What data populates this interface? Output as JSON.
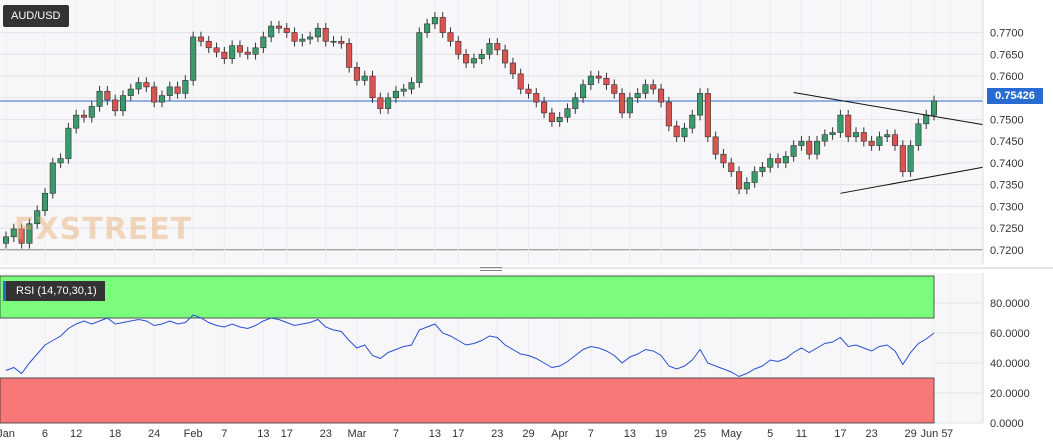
{
  "symbol": "AUD/USD",
  "current_price_label": "0.75426",
  "watermark": "FXSTREET",
  "rsi_label": "RSI (14,70,30,1)",
  "colors": {
    "up": "#3a9a6c",
    "down": "#d9534f",
    "rsi_line": "#2a4fd1",
    "overbought": "#7cfc7c",
    "oversold": "#f87878",
    "price_line": "#2a6bd1"
  },
  "chart_data": [
    {
      "type": "candlestick",
      "title": "AUD/USD",
      "y_ticks": [
        "0.7700",
        "0.7650",
        "0.7600",
        "0.7550",
        "0.7500",
        "0.7450",
        "0.7400",
        "0.7350",
        "0.7300",
        "0.7250",
        "0.7200"
      ],
      "ylim": [
        0.7165,
        0.7775
      ],
      "x_ticks": [
        "Jan",
        "6",
        "12",
        "18",
        "24",
        "Feb",
        "7",
        "13",
        "17",
        "23",
        "Mar",
        "7",
        "13",
        "17",
        "23",
        "29",
        "Apr",
        "7",
        "13",
        "19",
        "25",
        "May",
        "5",
        "11",
        "17",
        "23",
        "29",
        "Jun 5",
        "7"
      ],
      "current_price": 0.75426,
      "close": [
        0.723,
        0.7248,
        0.7215,
        0.726,
        0.729,
        0.733,
        0.74,
        0.741,
        0.748,
        0.751,
        0.7505,
        0.753,
        0.7565,
        0.7545,
        0.752,
        0.7555,
        0.757,
        0.7585,
        0.7575,
        0.754,
        0.7555,
        0.7575,
        0.756,
        0.759,
        0.769,
        0.768,
        0.7665,
        0.7655,
        0.764,
        0.767,
        0.7655,
        0.765,
        0.7665,
        0.769,
        0.7715,
        0.771,
        0.77,
        0.768,
        0.7685,
        0.769,
        0.771,
        0.768,
        0.768,
        0.7675,
        0.762,
        0.759,
        0.76,
        0.755,
        0.7525,
        0.755,
        0.7565,
        0.757,
        0.7585,
        0.77,
        0.772,
        0.7735,
        0.77,
        0.768,
        0.765,
        0.763,
        0.764,
        0.765,
        0.7675,
        0.766,
        0.763,
        0.7605,
        0.757,
        0.756,
        0.754,
        0.7515,
        0.7495,
        0.7505,
        0.7525,
        0.755,
        0.758,
        0.76,
        0.7595,
        0.758,
        0.756,
        0.7515,
        0.755,
        0.756,
        0.758,
        0.757,
        0.754,
        0.7485,
        0.746,
        0.748,
        0.751,
        0.756,
        0.746,
        0.742,
        0.74,
        0.738,
        0.734,
        0.7355,
        0.738,
        0.739,
        0.741,
        0.74,
        0.7415,
        0.744,
        0.745,
        0.742,
        0.745,
        0.7465,
        0.747,
        0.751,
        0.746,
        0.747,
        0.745,
        0.744,
        0.746,
        0.7465,
        0.744,
        0.738,
        0.744,
        0.749,
        0.751,
        0.7543
      ],
      "open": [
        0.7215,
        0.723,
        0.7248,
        0.7215,
        0.726,
        0.729,
        0.733,
        0.74,
        0.741,
        0.748,
        0.751,
        0.7505,
        0.753,
        0.7565,
        0.7545,
        0.752,
        0.7555,
        0.757,
        0.7585,
        0.7575,
        0.754,
        0.7555,
        0.7575,
        0.756,
        0.759,
        0.769,
        0.768,
        0.7665,
        0.7655,
        0.764,
        0.767,
        0.7655,
        0.765,
        0.7665,
        0.769,
        0.7715,
        0.771,
        0.77,
        0.768,
        0.7685,
        0.769,
        0.771,
        0.768,
        0.768,
        0.7675,
        0.762,
        0.759,
        0.76,
        0.755,
        0.7525,
        0.755,
        0.7565,
        0.757,
        0.7585,
        0.77,
        0.772,
        0.7735,
        0.77,
        0.768,
        0.765,
        0.763,
        0.764,
        0.765,
        0.7675,
        0.766,
        0.763,
        0.7605,
        0.757,
        0.756,
        0.754,
        0.7515,
        0.7495,
        0.7505,
        0.7525,
        0.755,
        0.758,
        0.76,
        0.7595,
        0.758,
        0.756,
        0.7515,
        0.755,
        0.756,
        0.758,
        0.757,
        0.754,
        0.7485,
        0.746,
        0.748,
        0.751,
        0.756,
        0.746,
        0.742,
        0.74,
        0.738,
        0.734,
        0.7355,
        0.738,
        0.739,
        0.741,
        0.74,
        0.7415,
        0.744,
        0.745,
        0.742,
        0.745,
        0.7465,
        0.747,
        0.751,
        0.746,
        0.747,
        0.745,
        0.744,
        0.746,
        0.7465,
        0.744,
        0.738,
        0.744,
        0.749,
        0.751
      ],
      "trendlines": [
        {
          "from": [
            0.7562
          ],
          "to": [
            0.7488
          ],
          "name": "upper"
        },
        {
          "from": [
            0.733
          ],
          "to": [
            0.739
          ],
          "name": "lower"
        }
      ]
    },
    {
      "type": "line",
      "title": "RSI (14,70,30,1)",
      "y_ticks": [
        "80.0000",
        "60.0000",
        "40.0000",
        "20.0000",
        "0.0000"
      ],
      "ylim": [
        0,
        100
      ],
      "overbought": 70,
      "oversold": 30,
      "values": [
        35,
        37,
        33,
        40,
        46,
        52,
        55,
        58,
        63,
        66,
        68,
        66,
        68,
        70,
        66,
        67,
        68,
        69,
        68,
        65,
        66,
        68,
        66,
        67,
        72,
        70,
        67,
        65,
        64,
        66,
        64,
        63,
        65,
        68,
        70,
        69,
        67,
        65,
        66,
        67,
        69,
        64,
        62,
        61,
        55,
        50,
        52,
        45,
        43,
        47,
        49,
        51,
        52,
        62,
        64,
        66,
        60,
        58,
        55,
        52,
        53,
        55,
        58,
        57,
        52,
        49,
        46,
        45,
        43,
        40,
        37,
        38,
        41,
        45,
        49,
        51,
        50,
        48,
        45,
        40,
        44,
        46,
        49,
        48,
        45,
        38,
        36,
        38,
        42,
        49,
        40,
        38,
        36,
        34,
        31,
        33,
        36,
        38,
        42,
        41,
        43,
        47,
        50,
        47,
        50,
        53,
        54,
        57,
        51,
        52,
        50,
        48,
        51,
        52,
        48,
        39,
        47,
        53,
        56,
        60
      ]
    }
  ]
}
